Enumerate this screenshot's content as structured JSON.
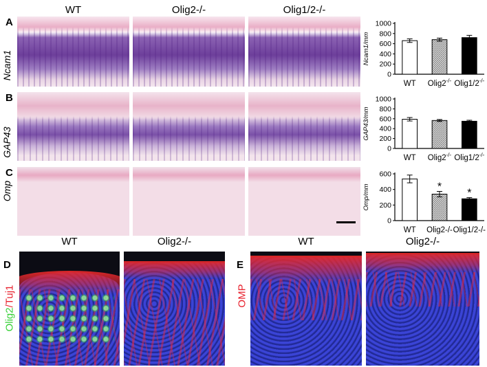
{
  "column_headers": [
    "WT",
    "Olig2-/-",
    "Olig1/2-/-"
  ],
  "panels": {
    "A": {
      "letter": "A",
      "row_label": "Ncam1"
    },
    "B": {
      "letter": "B",
      "row_label": "GAP43"
    },
    "C": {
      "letter": "C",
      "row_label": "Omp"
    },
    "D": {
      "letter": "D",
      "headers": [
        "WT",
        "Olig2-/-"
      ],
      "side_label_green": "Olig2",
      "side_label_sep": "/",
      "side_label_red": "Tuj1"
    },
    "E": {
      "letter": "E",
      "headers": [
        "WT",
        "Olig2-/-"
      ],
      "side_label": "OMP"
    }
  },
  "colors": {
    "green": "#39d139",
    "red": "#e8222e",
    "bar_wt": "#ffffff",
    "bar_olig2": "#bdbdbd",
    "bar_olig12": "#000000"
  },
  "chart_data": [
    {
      "type": "bar",
      "panel": "A",
      "categories": [
        "WT",
        "Olig2-/-",
        "Olig1/2-/-"
      ],
      "category_sup": [
        "",
        "-/-",
        "-/-"
      ],
      "category_base": [
        "WT",
        "Olig2",
        "Olig1/2"
      ],
      "values": [
        660,
        680,
        720
      ],
      "errors": [
        35,
        30,
        45
      ],
      "ylabel": "Ncam1/mm",
      "ylim": [
        0,
        1000
      ],
      "yticks": [
        0,
        200,
        400,
        600,
        800,
        1000
      ],
      "significance": [
        "",
        "",
        ""
      ]
    },
    {
      "type": "bar",
      "panel": "B",
      "categories": [
        "WT",
        "Olig2-/-",
        "Olig1/2-/-"
      ],
      "category_sup": [
        "",
        "-/-",
        "-/-"
      ],
      "category_base": [
        "WT",
        "Olig2",
        "Olig1/2"
      ],
      "values": [
        590,
        565,
        550
      ],
      "errors": [
        35,
        20,
        20
      ],
      "ylabel": "GAP43/mm",
      "ylim": [
        0,
        1000
      ],
      "yticks": [
        0,
        200,
        400,
        600,
        800,
        1000
      ],
      "significance": [
        "",
        "",
        ""
      ]
    },
    {
      "type": "bar",
      "panel": "C",
      "categories": [
        "WT",
        "Olig2-/-",
        "Olig1/2-/-"
      ],
      "category_sup": [
        "",
        "",
        ""
      ],
      "category_base": [
        "WT",
        "Olig2-/-",
        "Olig1/2-/-"
      ],
      "values": [
        535,
        340,
        280
      ],
      "errors": [
        50,
        35,
        15
      ],
      "ylabel": "Omp/mm",
      "ylim": [
        0,
        600
      ],
      "yticks": [
        0,
        200,
        400,
        600
      ],
      "significance": [
        "",
        "*",
        "*"
      ]
    }
  ]
}
